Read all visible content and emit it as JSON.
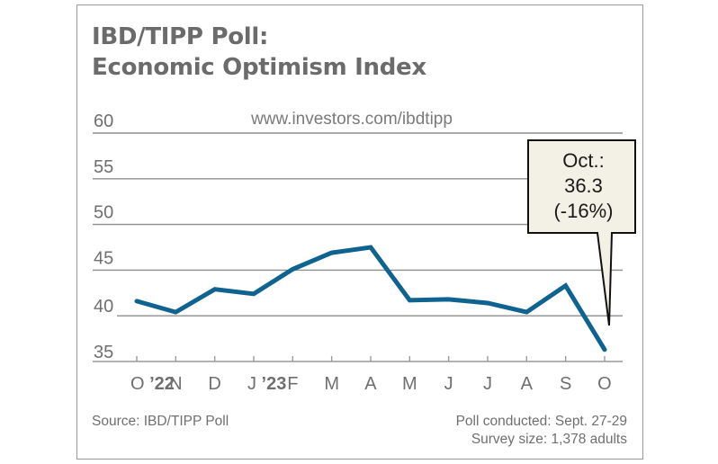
{
  "chart_data": {
    "type": "line",
    "title": "IBD/TIPP Poll:",
    "subtitle": "Economic Optimism Index",
    "url": "www.investors.com/ibdtipp",
    "xlabel": "",
    "ylabel": "",
    "ylim": [
      35,
      60
    ],
    "yticks": [
      60,
      55,
      50,
      45,
      40,
      35
    ],
    "grid": true,
    "categories": [
      {
        "label": "O",
        "year": "’22"
      },
      {
        "label": "N",
        "year": ""
      },
      {
        "label": "D",
        "year": ""
      },
      {
        "label": "J",
        "year": "’23"
      },
      {
        "label": "F",
        "year": ""
      },
      {
        "label": "M",
        "year": ""
      },
      {
        "label": "A",
        "year": ""
      },
      {
        "label": "M",
        "year": ""
      },
      {
        "label": "J",
        "year": ""
      },
      {
        "label": "J",
        "year": ""
      },
      {
        "label": "A",
        "year": ""
      },
      {
        "label": "S",
        "year": ""
      },
      {
        "label": "O",
        "year": ""
      }
    ],
    "series": [
      {
        "name": "Economic Optimism Index",
        "color": "#0e6391",
        "values": [
          41.6,
          40.4,
          42.9,
          42.4,
          45.1,
          46.9,
          47.5,
          41.7,
          41.8,
          41.4,
          40.4,
          43.3,
          36.3
        ]
      }
    ],
    "annotation": {
      "lines": [
        "Oct.:",
        "36.3",
        "(-16%)"
      ],
      "target_index": 12,
      "background": "#f3f1e6"
    },
    "source": "Source: IBD/TIPP Poll",
    "notes": [
      "Poll conducted: Sept. 27-29",
      "Survey size: 1,378 adults"
    ]
  }
}
